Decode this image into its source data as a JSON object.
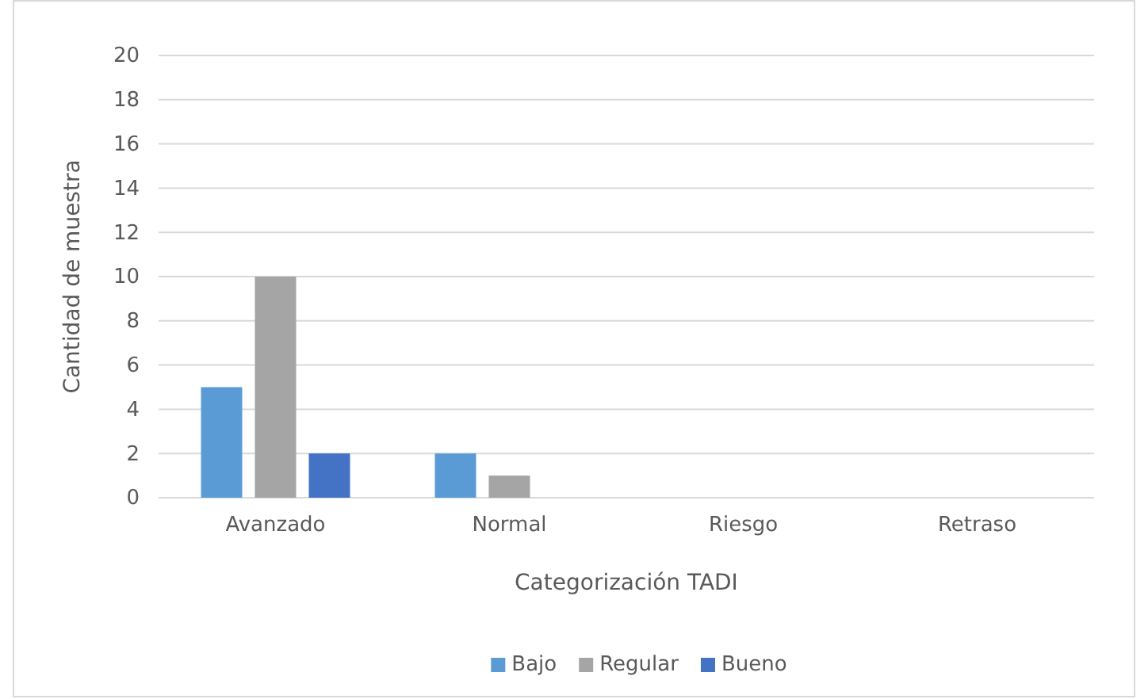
{
  "chart_data": {
    "type": "bar",
    "xlabel": "Categorización TADI",
    "ylabel": "Cantidad de muestra",
    "categories": [
      "Avanzado",
      "Normal",
      "Riesgo",
      "Retraso"
    ],
    "series": [
      {
        "name": "Bajo",
        "color": "#5b9bd5",
        "values": [
          5,
          2,
          0,
          0
        ]
      },
      {
        "name": "Regular",
        "color": "#a5a5a5",
        "values": [
          10,
          1,
          0,
          0
        ]
      },
      {
        "name": "Bueno",
        "color": "#4472c4",
        "values": [
          2,
          0,
          0,
          0
        ]
      }
    ],
    "ylim": [
      0,
      20
    ],
    "yticks": [
      0,
      2,
      4,
      6,
      8,
      10,
      12,
      14,
      16,
      18,
      20
    ],
    "grid": "y",
    "legend": "bottom"
  }
}
